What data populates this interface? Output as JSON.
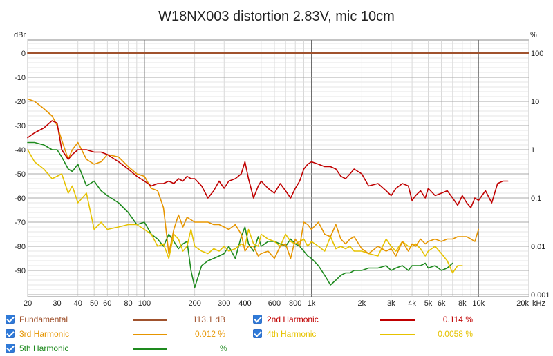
{
  "chart_data": {
    "type": "line",
    "title": "W18NX003 distortion 2.83V, mic 10cm",
    "ylabel_left": "dBr",
    "ylabel_right": "%",
    "xlabel": "kHz",
    "x_scale": "log",
    "xlim": [
      20,
      20000
    ],
    "ylim": [
      -100,
      5
    ],
    "grid": true,
    "x_tick_labels": [
      {
        "f": 20,
        "label": "20"
      },
      {
        "f": 30,
        "label": "30"
      },
      {
        "f": 40,
        "label": "40"
      },
      {
        "f": 50,
        "label": "50"
      },
      {
        "f": 60,
        "label": "60"
      },
      {
        "f": 80,
        "label": "80"
      },
      {
        "f": 100,
        "label": "100"
      },
      {
        "f": 200,
        "label": "200"
      },
      {
        "f": 300,
        "label": "300"
      },
      {
        "f": 400,
        "label": "400"
      },
      {
        "f": 600,
        "label": "600"
      },
      {
        "f": 800,
        "label": "800"
      },
      {
        "f": 1000,
        "label": "1k"
      },
      {
        "f": 2000,
        "label": "2k"
      },
      {
        "f": 3000,
        "label": "3k"
      },
      {
        "f": 4000,
        "label": "4k"
      },
      {
        "f": 5000,
        "label": "5k"
      },
      {
        "f": 6000,
        "label": "6k"
      },
      {
        "f": 8000,
        "label": "8k"
      },
      {
        "f": 10000,
        "label": "10k"
      },
      {
        "f": 20000,
        "label": "20k"
      }
    ],
    "y_ticks_left": [
      0,
      -10,
      -20,
      -30,
      -40,
      -50,
      -60,
      -70,
      -80,
      -90
    ],
    "y_ticks_right": [
      {
        "db": 0,
        "label": "100"
      },
      {
        "db": -20,
        "label": "10"
      },
      {
        "db": -40,
        "label": "1"
      },
      {
        "db": -60,
        "label": "0.1"
      },
      {
        "db": -80,
        "label": "0.01"
      },
      {
        "db": -100,
        "label": "0.001"
      }
    ],
    "series": [
      {
        "name": "Fundamental",
        "value": "113.1 dB",
        "color": "#a0522d",
        "x": [
          20,
          20000
        ],
        "y": [
          0,
          0
        ]
      },
      {
        "name": "2nd Harmonic",
        "value": "0.114 %",
        "color": "#c00000",
        "x": [
          20,
          22,
          25,
          28,
          30,
          32,
          35,
          37,
          40,
          45,
          50,
          55,
          60,
          70,
          80,
          90,
          100,
          110,
          120,
          130,
          140,
          150,
          160,
          170,
          180,
          190,
          200,
          220,
          240,
          260,
          280,
          300,
          320,
          350,
          380,
          400,
          420,
          450,
          480,
          500,
          550,
          600,
          650,
          700,
          750,
          800,
          850,
          900,
          950,
          1000,
          1100,
          1200,
          1300,
          1400,
          1500,
          1600,
          1700,
          1800,
          2000,
          2200,
          2500,
          2800,
          3000,
          3200,
          3500,
          3800,
          4000,
          4200,
          4500,
          4800,
          5000,
          5500,
          6000,
          6500,
          7000,
          7500,
          8000,
          8500,
          9000,
          9500,
          10000,
          11000,
          12000,
          13000,
          14000,
          15000
        ],
        "y": [
          -35,
          -33,
          -31,
          -28,
          -29,
          -40,
          -44,
          -42,
          -40,
          -40,
          -41,
          -41,
          -42,
          -45,
          -48,
          -51,
          -53,
          -55,
          -54,
          -54,
          -53,
          -54,
          -52,
          -53,
          -51,
          -52,
          -52,
          -55,
          -60,
          -57,
          -53,
          -56,
          -53,
          -52,
          -50,
          -45,
          -52,
          -60,
          -55,
          -53,
          -56,
          -58,
          -54,
          -57,
          -60,
          -56,
          -53,
          -48,
          -46,
          -45,
          -46,
          -47,
          -47,
          -48,
          -51,
          -52,
          -50,
          -48,
          -50,
          -55,
          -54,
          -57,
          -59,
          -56,
          -54,
          -55,
          -61,
          -59,
          -57,
          -60,
          -56,
          -59,
          -58,
          -57,
          -60,
          -63,
          -59,
          -62,
          -64,
          -60,
          -61,
          -57,
          -62,
          -54,
          -53,
          -53
        ]
      },
      {
        "name": "3rd Harmonic",
        "value": "0.012 %",
        "color": "#e69500",
        "x": [
          20,
          22,
          25,
          28,
          30,
          32,
          35,
          37,
          40,
          45,
          50,
          55,
          60,
          70,
          80,
          90,
          100,
          110,
          120,
          130,
          140,
          150,
          160,
          170,
          180,
          190,
          200,
          220,
          240,
          260,
          280,
          300,
          320,
          350,
          380,
          400,
          420,
          450,
          480,
          500,
          550,
          600,
          650,
          700,
          750,
          800,
          850,
          900,
          950,
          1000,
          1100,
          1200,
          1300,
          1400,
          1500,
          1600,
          1700,
          1800,
          2000,
          2200,
          2500,
          2800,
          3000,
          3200,
          3500,
          3800,
          4000,
          4200,
          4500,
          4800,
          5000,
          5500,
          6000,
          6500,
          7000,
          7500,
          8000,
          8500,
          9000,
          9500,
          10000
        ],
        "y": [
          -19,
          -20,
          -23,
          -26,
          -30,
          -36,
          -44,
          -40,
          -37,
          -44,
          -46,
          -45,
          -42,
          -43,
          -47,
          -50,
          -51,
          -56,
          -57,
          -64,
          -83,
          -73,
          -67,
          -72,
          -68,
          -69,
          -70,
          -70,
          -70,
          -71,
          -71,
          -72,
          -73,
          -71,
          -75,
          -82,
          -80,
          -80,
          -84,
          -83,
          -82,
          -85,
          -80,
          -79,
          -85,
          -77,
          -80,
          -70,
          -71,
          -73,
          -70,
          -75,
          -76,
          -71,
          -77,
          -79,
          -77,
          -76,
          -81,
          -83,
          -80,
          -82,
          -81,
          -84,
          -78,
          -82,
          -79,
          -80,
          -77,
          -79,
          -78,
          -77,
          -78,
          -77,
          -77,
          -76,
          -76,
          -76,
          -77,
          -78,
          -73
        ]
      },
      {
        "name": "4th Harmonic",
        "value": "0.0058 %",
        "color": "#e6c200",
        "x": [
          20,
          22,
          25,
          28,
          30,
          32,
          35,
          37,
          40,
          45,
          50,
          55,
          60,
          70,
          80,
          90,
          100,
          110,
          120,
          130,
          140,
          150,
          160,
          170,
          180,
          190,
          200,
          220,
          240,
          260,
          280,
          300,
          320,
          350,
          380,
          400,
          420,
          450,
          480,
          500,
          550,
          600,
          650,
          700,
          750,
          800,
          850,
          900,
          950,
          1000,
          1100,
          1200,
          1300,
          1400,
          1500,
          1600,
          1700,
          1800,
          2000,
          2200,
          2500,
          2800,
          3000,
          3200,
          3500,
          3800,
          4000,
          4200,
          4500,
          4800,
          5000,
          5500,
          6000,
          6500,
          7000,
          7500,
          8000
        ],
        "y": [
          -40,
          -45,
          -48,
          -52,
          -51,
          -50,
          -58,
          -55,
          -62,
          -58,
          -73,
          -70,
          -73,
          -72,
          -71,
          -71,
          -73,
          -75,
          -80,
          -79,
          -85,
          -75,
          -77,
          -82,
          -80,
          -73,
          -80,
          -82,
          -83,
          -81,
          -82,
          -80,
          -82,
          -81,
          -79,
          -80,
          -73,
          -79,
          -80,
          -75,
          -77,
          -78,
          -80,
          -75,
          -78,
          -79,
          -78,
          -77,
          -80,
          -78,
          -80,
          -82,
          -76,
          -81,
          -80,
          -81,
          -80,
          -82,
          -82,
          -83,
          -84,
          -77,
          -80,
          -82,
          -78,
          -80,
          -80,
          -79,
          -81,
          -84,
          -82,
          -80,
          -83,
          -86,
          -91,
          -88,
          -88
        ]
      },
      {
        "name": "5th Harmonic",
        "value": "",
        "color": "#1e8a1e",
        "x": [
          20,
          22,
          25,
          28,
          30,
          32,
          35,
          37,
          40,
          45,
          50,
          55,
          60,
          70,
          80,
          90,
          100,
          110,
          120,
          130,
          140,
          150,
          160,
          170,
          180,
          190,
          200,
          220,
          240,
          260,
          280,
          300,
          320,
          350,
          380,
          400,
          420,
          450,
          480,
          500,
          550,
          600,
          650,
          700,
          750,
          800,
          850,
          900,
          950,
          1000,
          1100,
          1200,
          1300,
          1400,
          1500,
          1600,
          1700,
          1800,
          2000,
          2200,
          2500,
          2800,
          3000,
          3200,
          3500,
          3800,
          4000,
          4200,
          4500,
          4800,
          5000,
          5500,
          6000,
          6500,
          7000
        ],
        "y": [
          -37,
          -37,
          -38,
          -40,
          -40,
          -43,
          -48,
          -49,
          -46,
          -55,
          -53,
          -57,
          -59,
          -62,
          -66,
          -71,
          -70,
          -75,
          -77,
          -80,
          -75,
          -78,
          -81,
          -79,
          -78,
          -90,
          -97,
          -88,
          -86,
          -85,
          -84,
          -83,
          -80,
          -85,
          -76,
          -72,
          -79,
          -82,
          -76,
          -80,
          -78,
          -78,
          -79,
          -80,
          -77,
          -79,
          -80,
          -82,
          -84,
          -85,
          -88,
          -92,
          -96,
          -94,
          -92,
          -91,
          -91,
          -90,
          -90,
          -89,
          -89,
          -88,
          -90,
          -89,
          -88,
          -90,
          -88,
          -88,
          -88,
          -87,
          -89,
          -88,
          -90,
          -89,
          -87
        ]
      }
    ]
  }
}
